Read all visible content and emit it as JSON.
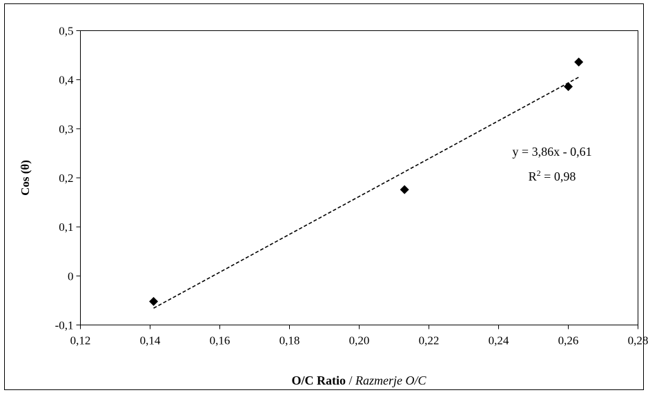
{
  "chart_data": {
    "type": "scatter",
    "xlabel": "O/C Ratio",
    "xlabel_secondary": "Razmerje O/C",
    "xlabel_separator": " / ",
    "ylabel": "Cos (θ)",
    "xlim": [
      0.12,
      0.28
    ],
    "ylim": [
      -0.1,
      0.5
    ],
    "x_ticks": [
      0.12,
      0.14,
      0.16,
      0.18,
      0.2,
      0.22,
      0.24,
      0.26,
      0.28
    ],
    "x_tick_labels": [
      "0,12",
      "0,14",
      "0,16",
      "0,18",
      "0,20",
      "0,22",
      "0,24",
      "0,26",
      "0,28"
    ],
    "y_ticks": [
      -0.1,
      0,
      0.1,
      0.2,
      0.3,
      0.4,
      0.5
    ],
    "y_tick_labels": [
      "-0,1",
      "0",
      "0,1",
      "0,2",
      "0,3",
      "0,4",
      "0,5"
    ],
    "grid": false,
    "legend": "none",
    "marker": "diamond",
    "marker_color": "#000000",
    "points": [
      {
        "x": 0.141,
        "y": -0.052
      },
      {
        "x": 0.213,
        "y": 0.176
      },
      {
        "x": 0.26,
        "y": 0.386
      },
      {
        "x": 0.263,
        "y": 0.436
      }
    ],
    "trendline": {
      "style": "dashed",
      "slope": 3.86,
      "intercept": -0.61,
      "x_range": [
        0.141,
        0.263
      ],
      "equation_text": "y = 3,86x - 0,61",
      "r2_prefix": "R",
      "r2_sup": "2",
      "r2_value": " = 0,98"
    }
  }
}
